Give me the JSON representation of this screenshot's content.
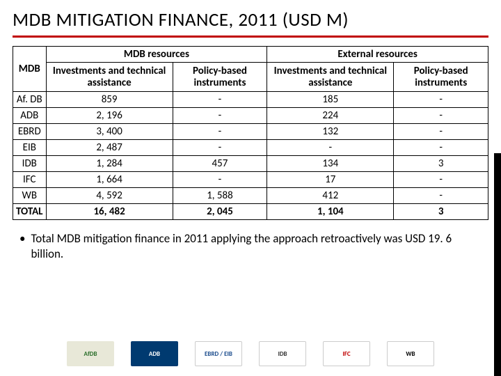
{
  "title": "MDB MITIGATION FINANCE, 2011 (USD M)",
  "accent_color": "#c00000",
  "table": {
    "row_header_label": "MDB",
    "groups": [
      "MDB resources",
      "External resources"
    ],
    "subheaders": [
      "Investments and technical assistance",
      "Policy-based instruments"
    ],
    "rows": [
      {
        "label": "Af. DB",
        "values": [
          "859",
          "-",
          "185",
          "-"
        ]
      },
      {
        "label": "ADB",
        "values": [
          "2, 196",
          "-",
          "224",
          "-"
        ]
      },
      {
        "label": "EBRD",
        "values": [
          "3, 400",
          "-",
          "132",
          "-"
        ]
      },
      {
        "label": "EIB",
        "values": [
          "2, 487",
          "-",
          "-",
          "-"
        ]
      },
      {
        "label": "IDB",
        "values": [
          "1, 284",
          "457",
          "134",
          "3"
        ]
      },
      {
        "label": "IFC",
        "values": [
          "1, 664",
          "-",
          "17",
          "-"
        ]
      },
      {
        "label": "WB",
        "values": [
          "4, 592",
          "1, 588",
          "412",
          "-"
        ]
      }
    ],
    "total": {
      "label": "TOTAL",
      "values": [
        "16, 482",
        "2, 045",
        "1, 104",
        "3"
      ]
    }
  },
  "bullet": "Total MDB mitigation finance in 2011 applying the approach retroactively was USD 19. 6  billion.",
  "logos": [
    {
      "name": "AfDB",
      "bg": "#e8e8d8",
      "fg": "#2a6e2a"
    },
    {
      "name": "ADB",
      "bg": "#003a70",
      "fg": "#ffffff"
    },
    {
      "name": "EBRD / EIB",
      "bg": "#ffffff",
      "fg": "#1a4b8c"
    },
    {
      "name": "IDB",
      "bg": "#ffffff",
      "fg": "#333333"
    },
    {
      "name": "IFC",
      "bg": "#ffffff",
      "fg": "#c00000"
    },
    {
      "name": "WB",
      "bg": "#ffffff",
      "fg": "#000000"
    }
  ]
}
